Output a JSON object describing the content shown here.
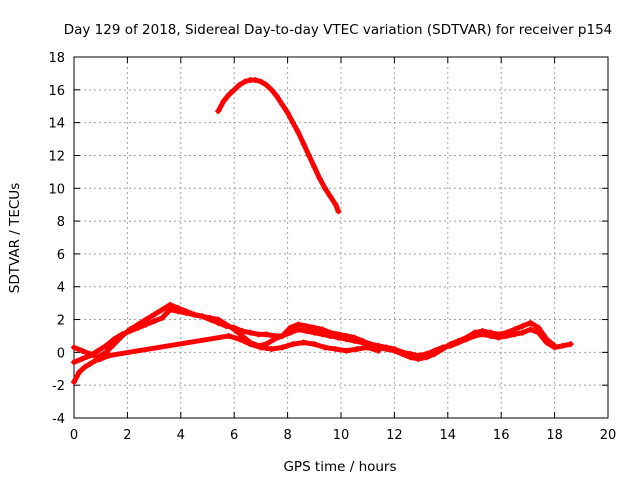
{
  "chart_data": {
    "type": "scatter",
    "title": "Day 129 of 2018, Sidereal Day-to-day VTEC variation (SDTVAR) for receiver p154",
    "xlabel": "GPS time / hours",
    "ylabel": "SDTVAR / TECUs",
    "xlim": [
      0,
      20
    ],
    "ylim": [
      -4,
      18
    ],
    "xticks": [
      0,
      2,
      4,
      6,
      8,
      10,
      12,
      14,
      16,
      18,
      20
    ],
    "yticks": [
      -4,
      -2,
      0,
      2,
      4,
      6,
      8,
      10,
      12,
      14,
      16,
      18
    ],
    "grid": true,
    "marker_color": "#ff0000",
    "series": [
      {
        "name": "satellite-arc-high",
        "x": [
          5.4,
          5.6,
          5.8,
          6.0,
          6.2,
          6.4,
          6.6,
          6.8,
          7.0,
          7.2,
          7.4,
          7.6,
          7.8,
          8.0,
          8.2,
          8.4,
          8.6,
          8.8,
          9.0,
          9.2,
          9.4,
          9.6,
          9.8,
          9.9
        ],
        "y": [
          14.7,
          15.3,
          15.7,
          16.0,
          16.3,
          16.5,
          16.6,
          16.6,
          16.5,
          16.3,
          16.0,
          15.6,
          15.1,
          14.6,
          14.0,
          13.4,
          12.7,
          12.0,
          11.3,
          10.6,
          10.0,
          9.5,
          9.0,
          8.6
        ]
      },
      {
        "name": "satellite-tracks-low",
        "x": [
          0.0,
          0.3,
          0.6,
          0.9,
          1.2,
          1.5,
          1.8,
          2.1,
          2.4,
          2.7,
          3.0,
          3.3,
          3.6,
          3.9,
          4.2,
          4.5,
          4.8,
          5.1,
          5.4,
          5.7,
          6.0,
          6.3,
          6.6,
          6.9,
          7.2,
          7.5,
          7.8,
          8.1,
          8.4,
          8.7,
          9.0,
          9.3,
          9.6,
          9.9,
          10.2,
          10.5,
          10.8,
          11.1,
          11.4,
          11.7,
          12.0,
          12.3,
          12.6,
          12.9,
          13.2,
          13.5,
          13.8,
          14.1,
          14.4,
          14.7,
          15.0,
          15.3,
          15.6,
          15.9,
          16.2,
          16.5,
          16.8,
          17.1,
          17.4,
          17.7,
          18.0,
          18.3,
          18.6
        ],
        "y": [
          -0.6,
          -0.4,
          -0.2,
          0.1,
          0.4,
          0.8,
          1.1,
          1.3,
          1.5,
          1.7,
          1.9,
          2.1,
          2.6,
          2.5,
          2.4,
          2.3,
          2.2,
          2.0,
          1.8,
          1.6,
          1.5,
          1.3,
          1.2,
          1.1,
          1.1,
          1.0,
          1.0,
          1.2,
          1.4,
          1.3,
          1.2,
          1.1,
          1.0,
          0.9,
          0.8,
          0.7,
          0.6,
          0.5,
          0.4,
          0.3,
          0.2,
          0.0,
          -0.1,
          -0.2,
          -0.1,
          0.1,
          0.3,
          0.4,
          0.6,
          0.8,
          1.0,
          1.1,
          1.0,
          0.9,
          1.0,
          1.1,
          1.2,
          1.4,
          1.2,
          0.6,
          0.3,
          0.4,
          0.5
        ]
      },
      {
        "name": "satellite-tracks-low-2",
        "x": [
          0.0,
          0.3,
          0.6,
          0.9,
          1.2,
          1.5,
          1.8,
          2.1,
          2.4,
          2.7,
          3.0,
          3.3,
          3.6,
          3.9,
          4.2,
          4.5,
          4.8,
          5.1,
          5.4,
          5.7,
          6.0,
          6.3,
          6.6,
          6.9,
          7.2,
          7.5,
          7.8,
          8.1,
          8.4,
          8.7,
          9.0,
          9.3,
          9.6,
          9.9,
          10.2,
          10.5,
          10.8,
          11.1,
          11.4,
          11.7,
          12.0,
          12.3,
          12.6,
          12.9,
          13.2,
          13.5,
          13.8,
          14.1,
          14.4,
          14.7,
          15.0,
          15.3,
          15.6,
          15.9,
          16.2,
          16.5,
          16.8,
          17.1,
          17.4,
          17.7,
          18.0
        ],
        "y": [
          0.3,
          0.1,
          -0.1,
          -0.3,
          0.0,
          0.5,
          1.0,
          1.4,
          1.7,
          2.0,
          2.3,
          2.6,
          2.9,
          2.7,
          2.5,
          2.3,
          2.2,
          2.1,
          2.0,
          1.7,
          1.4,
          1.0,
          0.6,
          0.4,
          0.5,
          0.8,
          1.0,
          1.5,
          1.7,
          1.6,
          1.5,
          1.4,
          1.2,
          1.1,
          1.0,
          0.9,
          0.7,
          0.5,
          0.3,
          0.2,
          0.1,
          -0.1,
          -0.3,
          -0.4,
          -0.3,
          -0.1,
          0.2,
          0.5,
          0.7,
          0.9,
          1.2,
          1.3,
          1.2,
          1.1,
          1.2,
          1.4,
          1.6,
          1.8,
          1.5,
          0.8,
          0.4
        ]
      },
      {
        "name": "satellite-tracks-low-3",
        "x": [
          0.0,
          0.2,
          0.4,
          0.6,
          0.8,
          1.0,
          1.3,
          5.8,
          6.2,
          6.6,
          7.0,
          7.4,
          7.8,
          8.2,
          8.6,
          9.0,
          9.4,
          9.8,
          10.2,
          10.6,
          11.0,
          11.4
        ],
        "y": [
          -1.8,
          -1.2,
          -0.9,
          -0.7,
          -0.5,
          -0.4,
          -0.2,
          1.0,
          0.8,
          0.5,
          0.3,
          0.2,
          0.3,
          0.5,
          0.6,
          0.5,
          0.3,
          0.2,
          0.1,
          0.2,
          0.3,
          0.1
        ]
      }
    ]
  }
}
